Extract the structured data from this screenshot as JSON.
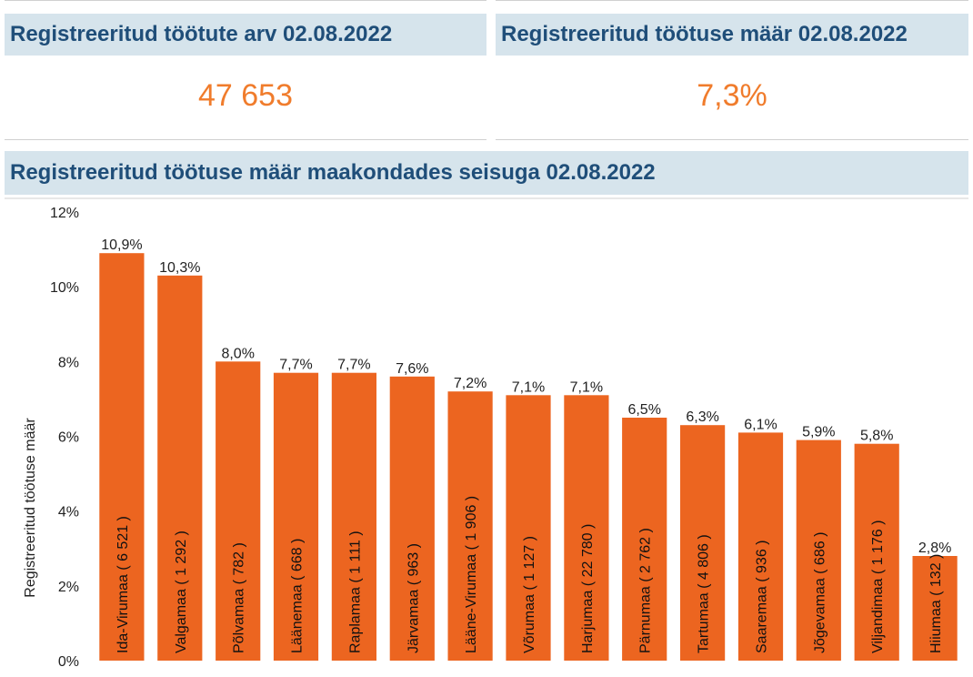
{
  "kpis": {
    "registered_count": {
      "title": "Registreeritud töötute arv 02.08.2022",
      "value": "47 653"
    },
    "registered_rate": {
      "title": "Registreeritud töötuse määr 02.08.2022",
      "value": "7,3%"
    }
  },
  "colors": {
    "bar": "#ec6520",
    "accent_value": "#f07c2c",
    "header_bg": "#d6e4ec",
    "header_text": "#1f4e79"
  },
  "chart_data": {
    "type": "bar",
    "title": "Registreeritud töötuse määr maakondades seisuga 02.08.2022",
    "ylabel": "Registreeritud töötuse määr",
    "ylim": [
      0,
      12
    ],
    "yticks": [
      "0%",
      "2%",
      "4%",
      "6%",
      "8%",
      "10%",
      "12%"
    ],
    "grid": false,
    "categories": [
      "Ida-Virumaa ( 6 521 )",
      "Valgamaa ( 1 292 )",
      "Põlvamaa ( 782 )",
      "Läänemaa ( 668 )",
      "Raplamaa ( 1 111 )",
      "Järvamaa ( 963 )",
      "Lääne-Virumaa ( 1 906 )",
      "Võrumaa ( 1 127 )",
      "Harjumaa ( 22 780 )",
      "Pärnumaa ( 2 762 )",
      "Tartumaa ( 4 806 )",
      "Saaremaa ( 936 )",
      "Jõgevamaa ( 686 )",
      "Viljandimaa ( 1 176 )",
      "Hiiumaa ( 132 )"
    ],
    "values": [
      10.9,
      10.3,
      8.0,
      7.7,
      7.7,
      7.6,
      7.2,
      7.1,
      7.1,
      6.5,
      6.3,
      6.1,
      5.9,
      5.8,
      2.8
    ],
    "value_labels": [
      "10,9%",
      "10,3%",
      "8,0%",
      "7,7%",
      "7,7%",
      "7,6%",
      "7,2%",
      "7,1%",
      "7,1%",
      "6,5%",
      "6,3%",
      "6,1%",
      "5,9%",
      "5,8%",
      "2,8%"
    ]
  }
}
